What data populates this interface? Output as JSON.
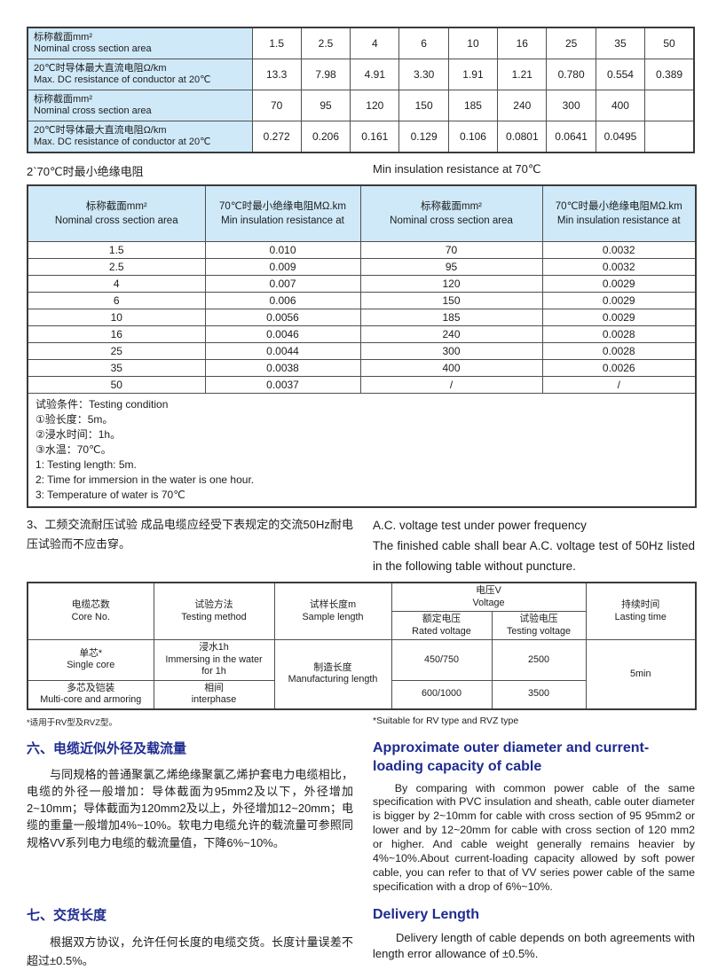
{
  "page": {
    "background": "#ffffff",
    "accent_navy": "#1e2b8f",
    "table_header_blue": "#cfe9f8"
  },
  "table1": {
    "rows": [
      {
        "label": "标称截面mm²\nNominal cross section area",
        "values": [
          "1.5",
          "2.5",
          "4",
          "6",
          "10",
          "16",
          "25",
          "35",
          "50"
        ]
      },
      {
        "label": "20℃时导体最大直流电阻Ω/km\nMax. DC resistance of conductor at 20℃",
        "values": [
          "13.3",
          "7.98",
          "4.91",
          "3.30",
          "1.91",
          "1.21",
          "0.780",
          "0.554",
          "0.389"
        ]
      },
      {
        "label": "标称截面mm²\nNominal cross section area",
        "values": [
          "70",
          "95",
          "120",
          "150",
          "185",
          "240",
          "300",
          "400",
          ""
        ]
      },
      {
        "label": "20℃时导体最大直流电阻Ω/km\nMax. DC resistance of conductor at 20℃",
        "values": [
          "0.272",
          "0.206",
          "0.161",
          "0.129",
          "0.106",
          "0.0801",
          "0.0641",
          "0.0495",
          ""
        ]
      }
    ]
  },
  "section2": {
    "title_zh": "2`70℃时最小绝缘电阻",
    "title_en": "Min insulation resistance at 70℃"
  },
  "table2": {
    "headers": [
      "标称截面mm²\nNominal cross section area",
      "70℃时最小绝缘电阻MΩ.km\nMin insulation resistance at",
      "标称截面mm²\nNominal cross section area",
      "70℃时最小绝缘电阻MΩ.km\nMin insulation resistance at"
    ],
    "rows": [
      [
        "1.5",
        "0.010",
        "70",
        "0.0032"
      ],
      [
        "2.5",
        "0.009",
        "95",
        "0.0032"
      ],
      [
        "4",
        "0.007",
        "120",
        "0.0029"
      ],
      [
        "6",
        "0.006",
        "150",
        "0.0029"
      ],
      [
        "10",
        "0.0056",
        "185",
        "0.0029"
      ],
      [
        "16",
        "0.0046",
        "240",
        "0.0028"
      ],
      [
        "25",
        "0.0044",
        "300",
        "0.0028"
      ],
      [
        "35",
        "0.0038",
        "400",
        "0.0026"
      ],
      [
        "50",
        "0.0037",
        "/",
        "/"
      ]
    ],
    "notes": [
      "试验条件：Testing condition",
      "①验长度：5m。",
      "②浸水时间：1h。",
      "③水温：70℃。",
      "1: Testing length: 5m.",
      "2: Time for immersion in the water is one hour.",
      "3: Temperature of water is 70℃"
    ]
  },
  "section3": {
    "zh": "3、工频交流耐压试验 成品电缆应经受下表规定的交流50Hz耐电压试验而不应击穿。",
    "en_line1": "A.C. voltage test under power frequency",
    "en_line2": "The finished cable shall bear A.C. voltage test of 50Hz listed in the following table without puncture."
  },
  "table3": {
    "h_core": "电缆芯数\nCore No.",
    "h_method": "试验方法\nTesting method",
    "h_sample": "试样长度m\nSample length",
    "h_voltage": "电压V\nVoltage",
    "h_lasting": "持续时间\nLasting time",
    "h_rated": "额定电压\nRated voltage",
    "h_testing": "试验电压\nTesting voltage",
    "r1_core": "单芯*\nSingle core",
    "r1_method": "浸水1h\nImmersing in the water\nfor 1h",
    "r_sample": "制造长度\nManufacturing length",
    "r1_rated": "450/750",
    "r1_testing": "2500",
    "r_lasting": "5min",
    "r2_core": "多芯及铠装\nMulti-core and armoring",
    "r2_method": "相间\ninterphase",
    "r2_rated": "600/1000",
    "r2_testing": "3500"
  },
  "footnote": {
    "zh": "*适用于RV型及RVZ型。",
    "en": "*Suitable for RV type and RVZ type"
  },
  "section6": {
    "title_zh": "六、电缆近似外径及载流量",
    "title_en": "Approximate outer diameter and current-loading capacity of cable",
    "body_zh": "与同规格的普通聚氯乙烯绝缘聚氯乙烯护套电力电缆相比，电缆的外径一般增加：导体截面为95mm2及以下，外径增加2~10mm；导体截面为120mm2及以上，外径增加12~20mm；电缆的重量一般增加4%~10%。软电力电缆允许的载流量可参照同规格VV系列电力电缆的载流量值，下降6%~10%。",
    "body_en": "By comparing with common power cable of the same specification with PVC insulation and sheath, cable outer diameter is bigger by 2~10mm for cable with cross section of 95 95mm2 or lower and by 12~20mm for cable with cross section of 120 mm2 or higher. And cable weight generally remains heavier by 4%~10%.About current-loading capacity allowed by soft power cable, you can refer to that of VV series power cable of the same specification with a drop of 6%~10%."
  },
  "section7": {
    "title_zh": "七、交货长度",
    "title_en": "Delivery Length",
    "body_zh": "根据双方协议，允许任何长度的电缆交货。长度计量误差不超过±0.5%。",
    "body_en": "Delivery length of cable depends on both agreements with length error allowance of ±0.5%."
  }
}
